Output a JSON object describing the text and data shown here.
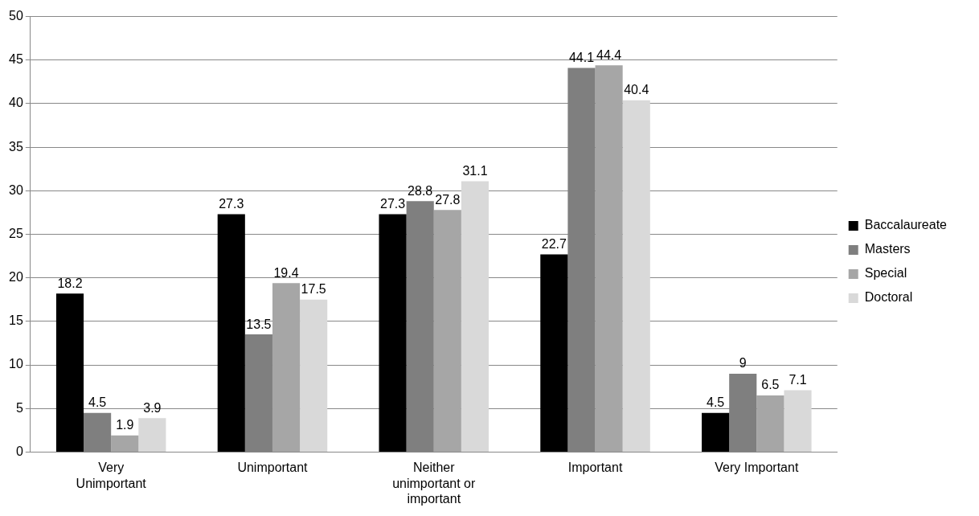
{
  "chart_data": {
    "type": "bar",
    "categories": [
      "Very Unimportant",
      "Unimportant",
      "Neither unimportant or important",
      "Important",
      "Very Important"
    ],
    "series": [
      {
        "name": "Baccalaureate",
        "color": "#000000",
        "values": [
          18.2,
          27.3,
          27.3,
          22.7,
          4.5
        ]
      },
      {
        "name": "Masters",
        "color": "#7f7f7f",
        "values": [
          4.5,
          13.5,
          28.8,
          44.1,
          9
        ]
      },
      {
        "name": "Special",
        "color": "#a6a6a6",
        "values": [
          1.9,
          19.4,
          27.8,
          44.4,
          6.5
        ]
      },
      {
        "name": "Doctoral",
        "color": "#d9d9d9",
        "values": [
          3.9,
          17.5,
          31.1,
          40.4,
          7.1
        ]
      }
    ],
    "ylim": [
      0,
      50
    ],
    "yticks": [
      0,
      5,
      10,
      15,
      20,
      25,
      30,
      35,
      40,
      45,
      50
    ],
    "grid": "y",
    "legend": "right",
    "data_labels": true
  }
}
